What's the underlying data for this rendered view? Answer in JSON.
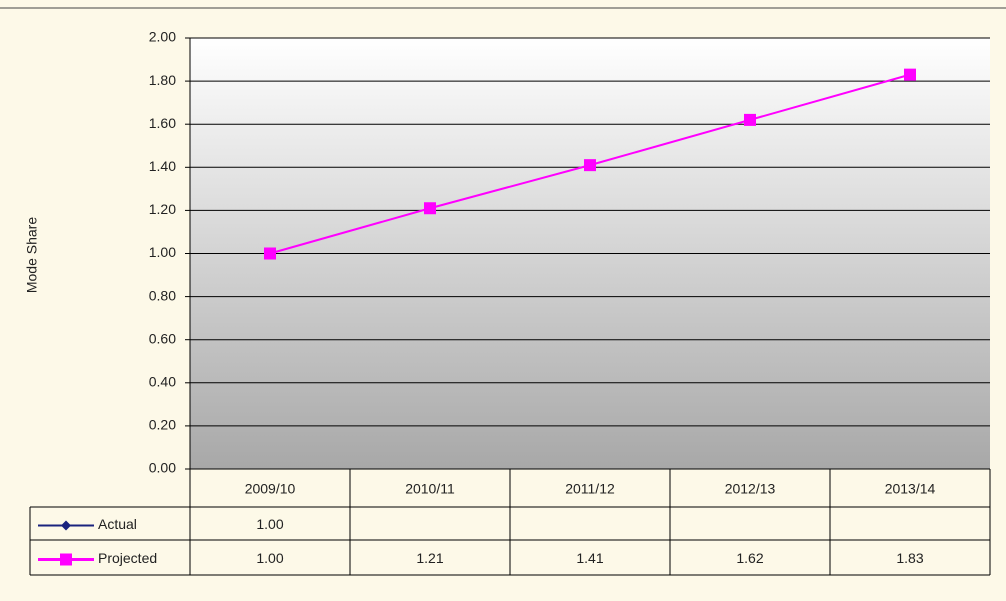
{
  "chart_data": {
    "type": "line",
    "y_label": "Mode Share",
    "categories": [
      "2009/10",
      "2010/11",
      "2011/12",
      "2012/13",
      "2013/14"
    ],
    "series": [
      {
        "name": "Actual",
        "color": "#1a237e",
        "marker": "diamond",
        "values": [
          1.0,
          null,
          null,
          null,
          null
        ],
        "value_labels": [
          "1.00",
          null,
          null,
          null,
          null
        ]
      },
      {
        "name": "Projected",
        "color": "#ff00ff",
        "marker": "square",
        "values": [
          1.0,
          1.21,
          1.41,
          1.62,
          1.83
        ],
        "value_labels": [
          "1.00",
          "1.21",
          "1.41",
          "1.62",
          "1.83"
        ]
      }
    ],
    "ylim": [
      0,
      2
    ],
    "yticks": [
      {
        "value": 0,
        "label": "0.00"
      },
      {
        "value": 0.2,
        "label": "0.20"
      },
      {
        "value": 0.4,
        "label": "0.40"
      },
      {
        "value": 0.6,
        "label": "0.60"
      },
      {
        "value": 0.8,
        "label": "0.80"
      },
      {
        "value": 1,
        "label": "1.00"
      },
      {
        "value": 1.2,
        "label": "1.20"
      },
      {
        "value": 1.4,
        "label": "1.40"
      },
      {
        "value": 1.6,
        "label": "1.60"
      },
      {
        "value": 1.8,
        "label": "1.80"
      },
      {
        "value": 2,
        "label": "2.00"
      }
    ],
    "grid": true
  }
}
